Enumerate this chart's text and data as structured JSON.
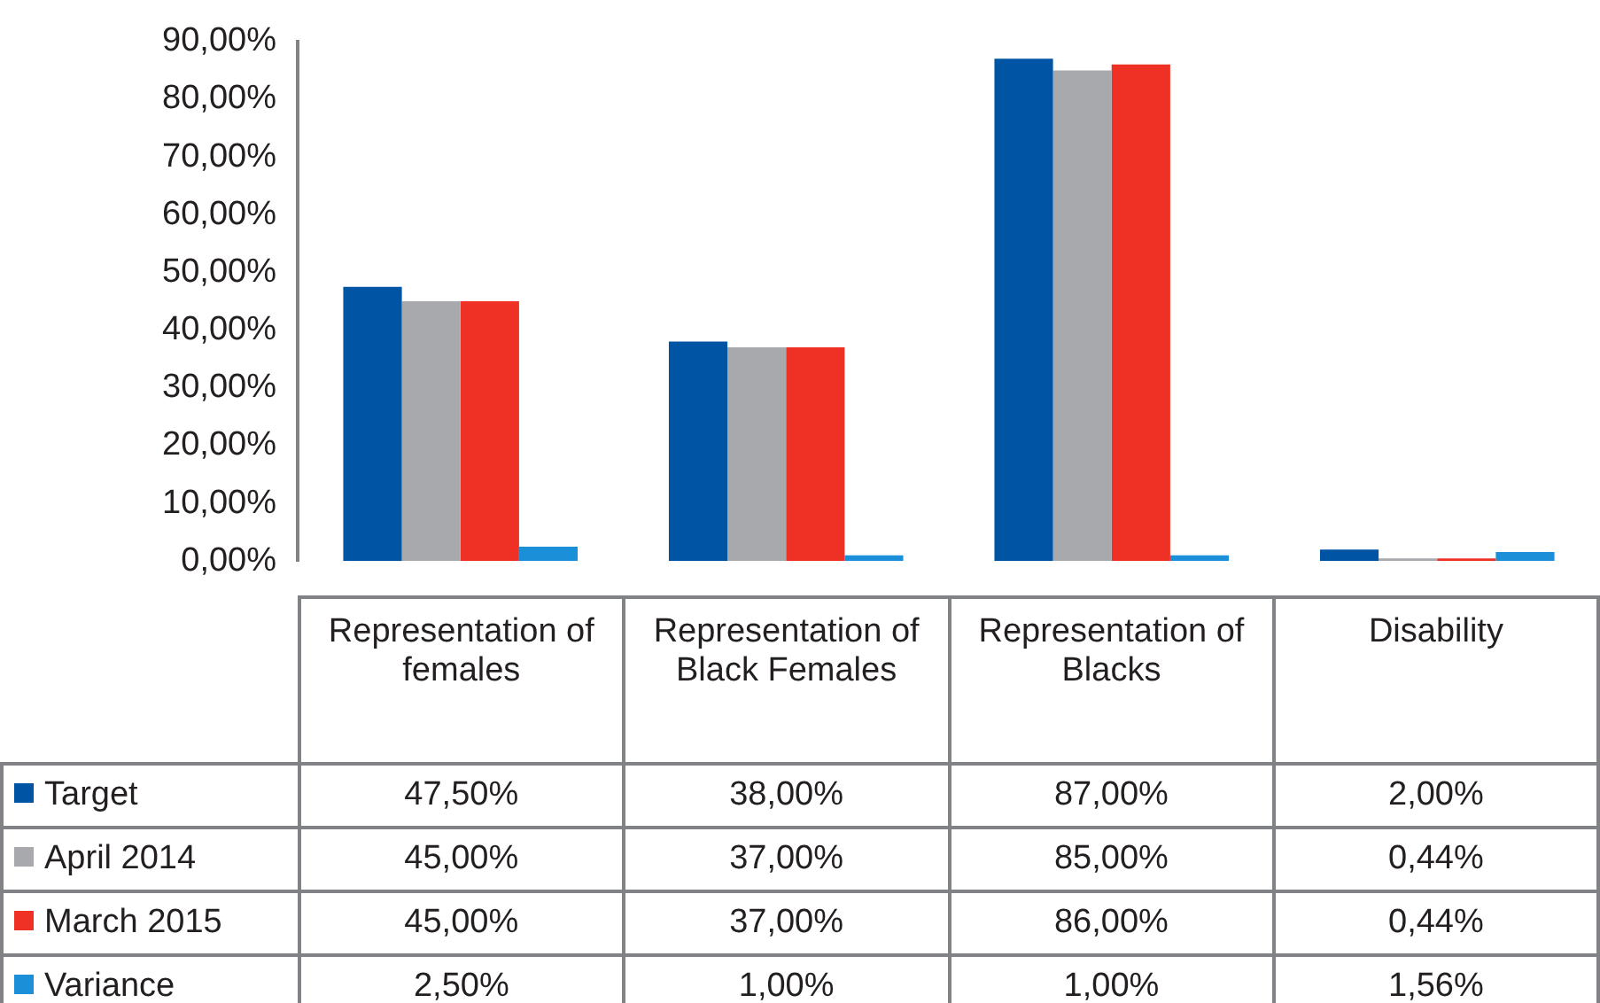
{
  "chart_data": {
    "type": "bar",
    "categories": [
      "Representation of females",
      "Representation of Black Females",
      "Representation of Blacks",
      "Disability"
    ],
    "series": [
      {
        "name": "Target",
        "color": "#0054a4",
        "values": [
          47.5,
          38,
          87,
          2
        ],
        "value_labels": [
          "47,50%",
          "38,00%",
          "87,00%",
          "2,00%"
        ]
      },
      {
        "name": "April 2014",
        "color": "#a7a9ac",
        "values": [
          45,
          37,
          85,
          0.44
        ],
        "value_labels": [
          "45,00%",
          "37,00%",
          "85,00%",
          "0,44%"
        ]
      },
      {
        "name": "March 2015",
        "color": "#ee3124",
        "values": [
          45,
          37,
          86,
          0.44
        ],
        "value_labels": [
          "45,00%",
          "37,00%",
          "86,00%",
          "0,44%"
        ]
      },
      {
        "name": "Variance",
        "color": "#1b8fd8",
        "values": [
          2.5,
          1,
          1,
          1.56
        ],
        "value_labels": [
          "2,50%",
          "1,00%",
          "1,00%",
          "1,56%"
        ]
      }
    ],
    "ylim": [
      0,
      90
    ],
    "yticks": [
      {
        "value": 0,
        "label": "0,00%"
      },
      {
        "value": 10,
        "label": "10,00%"
      },
      {
        "value": 20,
        "label": "20,00%"
      },
      {
        "value": 30,
        "label": "30,00%"
      },
      {
        "value": 40,
        "label": "40,00%"
      },
      {
        "value": 50,
        "label": "50,00%"
      },
      {
        "value": 60,
        "label": "60,00%"
      },
      {
        "value": 70,
        "label": "70,00%"
      },
      {
        "value": 80,
        "label": "80,00%"
      },
      {
        "value": 90,
        "label": "90,00%"
      }
    ],
    "grid": false,
    "legend": "bottom left"
  }
}
